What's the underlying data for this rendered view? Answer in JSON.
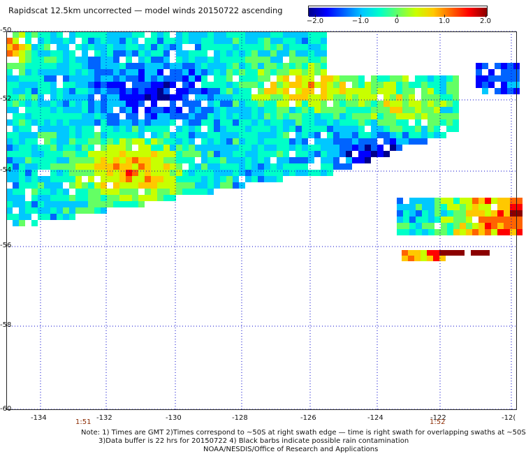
{
  "title": "Rapidscat 12.5km uncorrected — model winds 20150722 ascending",
  "colorbar": {
    "ticks": [
      "−2.0",
      "−1.0",
      "0",
      "1.0",
      "2.0"
    ],
    "colors": [
      "#00008b",
      "#0000ff",
      "#0064ff",
      "#00c8ff",
      "#00ffc8",
      "#64ff64",
      "#c8ff00",
      "#ffc800",
      "#ff6400",
      "#ff0000",
      "#8b0000"
    ]
  },
  "axes": {
    "lat_labels": [
      "-50",
      "-52",
      "-54",
      "-56",
      "-58",
      "-60"
    ],
    "lon_labels": [
      "-134",
      "-132",
      "-130",
      "-128",
      "-126",
      "-124",
      "-122",
      "-12("
    ]
  },
  "times": [
    "1:51",
    "1:52"
  ],
  "notes": [
    "Note: 1) Times are GMT 2)Times correspond to ~50S at right swath edge — time is right swath for overlapping swaths at ~50S",
    "3)Data buffer is 22 hrs for 20150722 4) Black barbs indicate possible rain contamination",
    "NOAA/NESDIS/Office of Research and Applications"
  ]
}
